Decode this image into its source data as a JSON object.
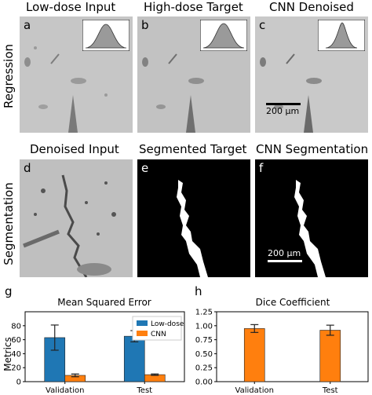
{
  "sections": {
    "regression": "Regression",
    "segmentation": "Segmentation"
  },
  "columns_top": [
    "Low-dose Input",
    "High-dose Target",
    "CNN Denoised"
  ],
  "columns_bottom": [
    "Denoised Input",
    "Segmented Target",
    "CNN Segmentation"
  ],
  "panel_letters": [
    "a",
    "b",
    "c",
    "d",
    "e",
    "f"
  ],
  "scalebar_top": "200 μm",
  "scalebar_bottom": "200 μm",
  "chart_panel_letters": [
    "g",
    "h"
  ],
  "colors": {
    "low_dose": "#1f77b4",
    "cnn": "#ff7f0e",
    "image_gray": "#c4c4c4"
  },
  "chart_data": [
    {
      "type": "bar",
      "title": "Mean Squared Error",
      "ylabel": "Metrics",
      "categories": [
        "Validation",
        "Test"
      ],
      "ylim": [
        0,
        100
      ],
      "yticks": [
        0,
        20,
        40,
        60,
        80
      ],
      "legend_position": "top-right",
      "series": [
        {
          "name": "Low-dose",
          "values": [
            63,
            65
          ],
          "errors": [
            18,
            8
          ],
          "color": "#1f77b4"
        },
        {
          "name": "CNN",
          "values": [
            9,
            10
          ],
          "errors": [
            2,
            1
          ],
          "color": "#ff7f0e"
        }
      ]
    },
    {
      "type": "bar",
      "title": "Dice Coefficient",
      "categories": [
        "Validation",
        "Test"
      ],
      "ylim": [
        0,
        1.25
      ],
      "yticks": [
        0.0,
        0.25,
        0.5,
        0.75,
        1.0,
        1.25
      ],
      "series": [
        {
          "values": [
            0.95,
            0.92
          ],
          "errors": [
            0.07,
            0.09
          ],
          "color": "#ff7f0e"
        }
      ]
    }
  ]
}
